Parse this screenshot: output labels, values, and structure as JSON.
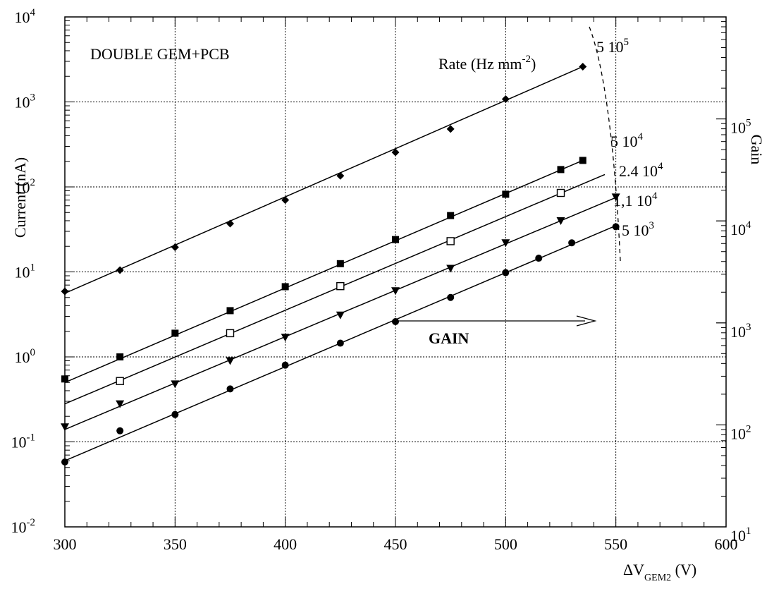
{
  "chart_data": {
    "type": "scatter",
    "title": "",
    "annotation_title": "DOUBLE GEM+PCB",
    "rate_label": {
      "prefix": "Rate (Hz mm",
      "exp": "-2",
      "suffix": ")"
    },
    "xlabel": {
      "prefix": "ΔV",
      "sub": "GEM2",
      "suffix": " (V)"
    },
    "ylabel": "Current (nA)",
    "y2label": "Gain",
    "gain_arrow_label": "GAIN",
    "xlim": [
      300,
      600
    ],
    "ylim": [
      0.01,
      10000
    ],
    "y2lim": [
      10,
      1000000
    ],
    "yscale": "log",
    "grid": true,
    "x_ticks": [
      300,
      350,
      400,
      450,
      500,
      550,
      600
    ],
    "y_ticks": [
      {
        "value": 0.01,
        "base": "10",
        "exp": "-2"
      },
      {
        "value": 0.1,
        "base": "10",
        "exp": "-1"
      },
      {
        "value": 1,
        "base": "10",
        "exp": "0"
      },
      {
        "value": 10,
        "base": "10",
        "exp": "1"
      },
      {
        "value": 100,
        "base": "10",
        "exp": "2"
      },
      {
        "value": 1000,
        "base": "10",
        "exp": "3"
      },
      {
        "value": 10000,
        "base": "10",
        "exp": "4"
      }
    ],
    "y2_ticks": [
      {
        "value": 10,
        "base": "10",
        "exp": "1"
      },
      {
        "value": 100,
        "base": "10",
        "exp": "2"
      },
      {
        "value": 1000,
        "base": "10",
        "exp": "3"
      },
      {
        "value": 10000,
        "base": "10",
        "exp": "4"
      },
      {
        "value": 100000,
        "base": "10",
        "exp": "5"
      }
    ],
    "series": [
      {
        "rate_label": {
          "base": "5 10",
          "exp": "5"
        },
        "marker": "diamond",
        "x": [
          300,
          325,
          350,
          375,
          400,
          425,
          450,
          475,
          500,
          535
        ],
        "y": [
          5.9,
          10.5,
          19.5,
          37,
          70,
          135,
          255,
          480,
          1080,
          2600
        ],
        "fit": [
          [
            300,
            5.6
          ],
          [
            535,
            2600
          ]
        ]
      },
      {
        "rate_label": {
          "base": "5 10",
          "exp": "4"
        },
        "marker": "square-filled",
        "x": [
          300,
          325,
          350,
          375,
          400,
          425,
          450,
          475,
          500,
          525,
          535
        ],
        "y": [
          0.55,
          1.0,
          1.9,
          3.5,
          6.7,
          12.5,
          24,
          46,
          82,
          160,
          205
        ],
        "fit": [
          [
            300,
            0.5
          ],
          [
            535,
            205
          ]
        ]
      },
      {
        "rate_label": {
          "base": "2.4 10",
          "exp": "4"
        },
        "marker": "square-open",
        "x": [
          325,
          375,
          425,
          475,
          525
        ],
        "y": [
          0.52,
          1.9,
          6.8,
          23,
          85
        ],
        "fit": [
          [
            300,
            0.28
          ],
          [
            545,
            140
          ]
        ]
      },
      {
        "rate_label": {
          "base": "1,1 10",
          "exp": "4"
        },
        "marker": "triangle-down",
        "x": [
          300,
          325,
          350,
          375,
          400,
          425,
          450,
          475,
          500,
          525,
          550
        ],
        "y": [
          0.15,
          0.28,
          0.48,
          0.9,
          1.7,
          3.1,
          6.0,
          11,
          22,
          40,
          76
        ],
        "fit": [
          [
            300,
            0.14
          ],
          [
            550,
            75
          ]
        ]
      },
      {
        "rate_label": {
          "base": "5 10",
          "exp": "3"
        },
        "marker": "circle",
        "x": [
          300,
          325,
          350,
          375,
          400,
          425,
          450,
          475,
          500,
          515,
          530,
          550
        ],
        "y": [
          0.058,
          0.135,
          0.21,
          0.42,
          0.8,
          1.45,
          2.6,
          5.0,
          9.8,
          14.5,
          22,
          34
        ],
        "fit": [
          [
            300,
            0.06
          ],
          [
            550,
            35
          ]
        ]
      }
    ]
  }
}
